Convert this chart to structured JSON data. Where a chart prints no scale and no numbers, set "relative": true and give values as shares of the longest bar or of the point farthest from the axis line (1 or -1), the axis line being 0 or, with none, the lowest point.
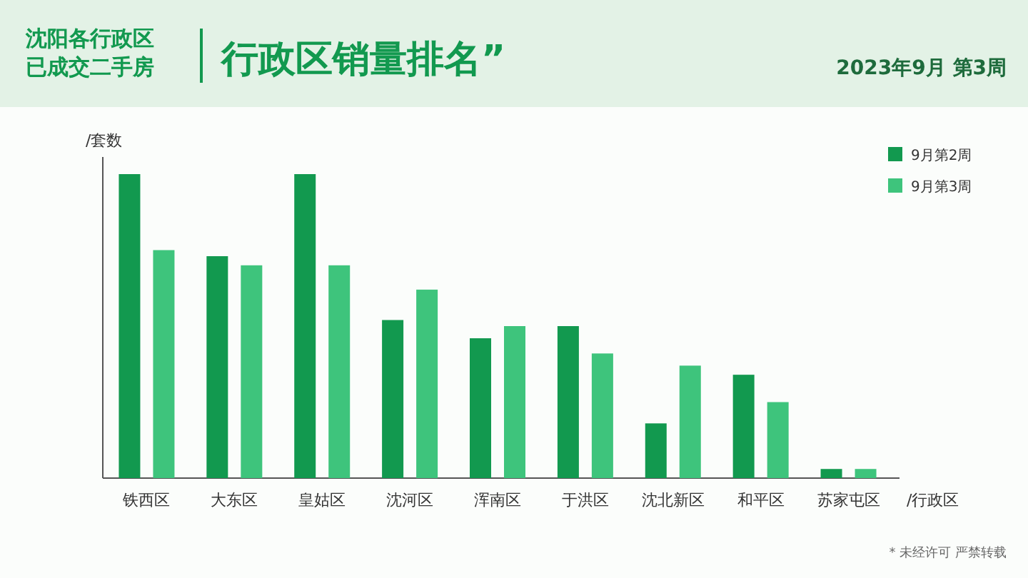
{
  "chart_data": {
    "type": "bar",
    "title": "行政区销量排名”",
    "subtitle": "沈阳各行政区已成交二手房",
    "annotations": [
      "2023年9月 第3周",
      "* 未经许可 严禁转载"
    ],
    "ylabel": "/套数",
    "xlabel": "/行政区",
    "relative": true,
    "legend": "top right",
    "grid": false,
    "categories": [
      "铁西区",
      "大东区",
      "皇姑区",
      "沈河区",
      "浑南区",
      "于洪区",
      "沈北新区",
      "和平区",
      "苏家屯区"
    ],
    "series": [
      {
        "name": "9月第2周",
        "color": "#12994f",
        "values": [
          1.0,
          0.73,
          1.0,
          0.52,
          0.46,
          0.5,
          0.18,
          0.34,
          0.03
        ]
      },
      {
        "name": "9月第3周",
        "color": "#3ec47c",
        "values": [
          0.75,
          0.7,
          0.7,
          0.62,
          0.5,
          0.41,
          0.37,
          0.25,
          0.03
        ]
      }
    ]
  }
}
